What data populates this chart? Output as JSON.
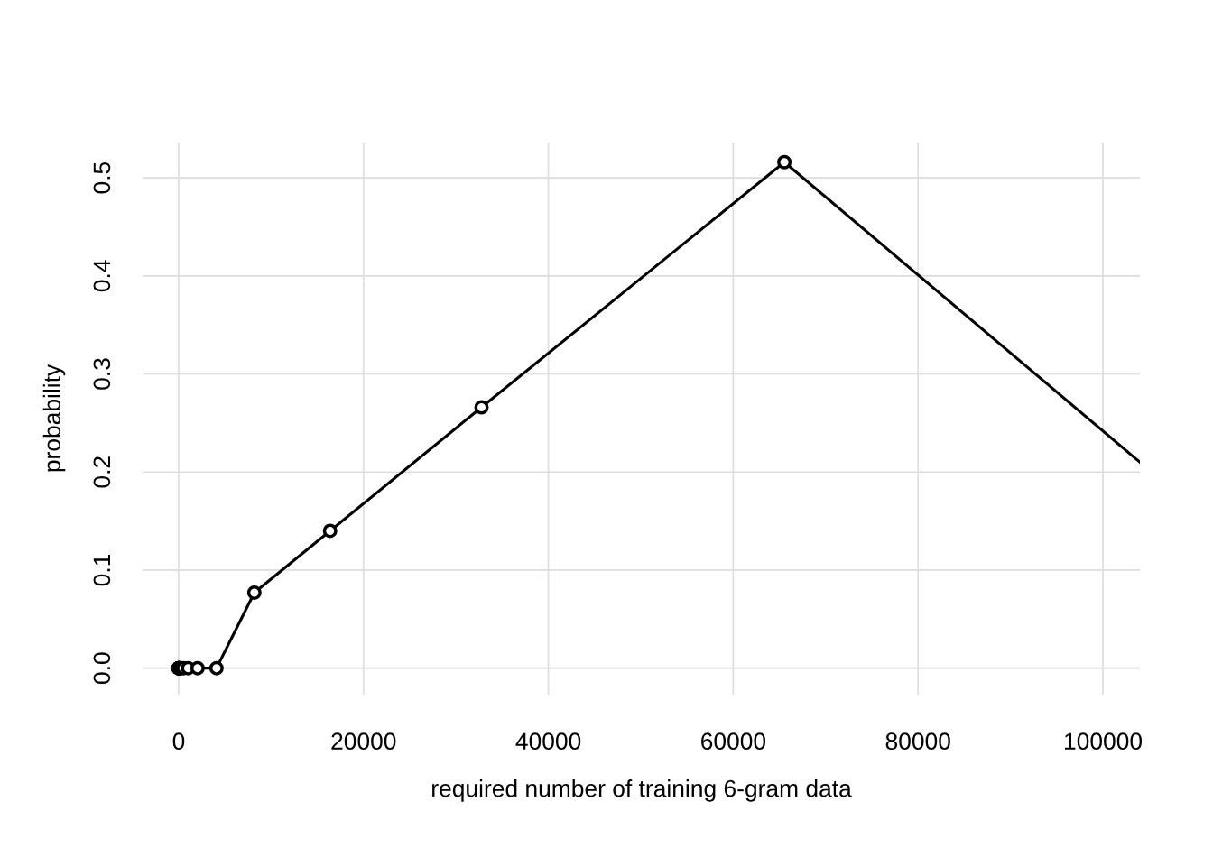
{
  "chart_data": {
    "type": "line",
    "xlabel": "required number of training 6-gram data",
    "ylabel": "probability",
    "x": [
      1,
      2,
      4,
      8,
      16,
      32,
      64,
      128,
      256,
      512,
      1024,
      2048,
      4096,
      8192,
      16384,
      32768,
      65536,
      104000
    ],
    "series": [
      {
        "color": "#000000",
        "values": [
          0,
          0,
          0,
          0,
          0,
          0,
          0,
          0,
          0,
          0,
          0,
          0,
          0,
          0.077,
          0.14,
          0.266,
          0.516,
          0.21
        ]
      }
    ],
    "xlim": [
      -3900,
      104000
    ],
    "ylim": [
      -0.027,
      0.536
    ],
    "xticks": [
      0,
      20000,
      40000,
      60000,
      80000,
      100000
    ],
    "yticks": [
      {
        "value": 0,
        "label": "0.0"
      },
      {
        "value": 0.1,
        "label": "0.1"
      },
      {
        "value": 0.2,
        "label": "0.2"
      },
      {
        "value": 0.3,
        "label": "0.3"
      },
      {
        "value": 0.4,
        "label": "0.4"
      },
      {
        "value": 0.5,
        "label": "0.5"
      }
    ],
    "grid": true,
    "marker": "circle",
    "line_style": "solid"
  }
}
